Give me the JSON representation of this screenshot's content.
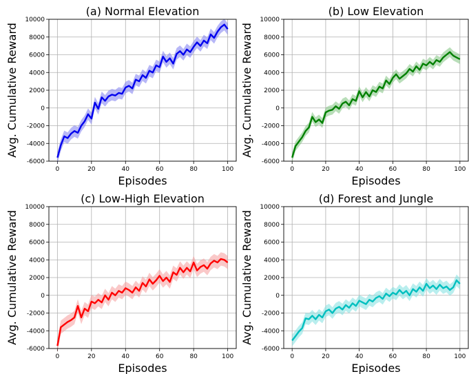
{
  "chart_data": [
    {
      "type": "line",
      "title": "(a) Normal Elevation",
      "xlabel": "Episodes",
      "ylabel": "Avg. Cumulative Reward",
      "xlim": [
        0,
        100
      ],
      "ylim": [
        -6000,
        10000
      ],
      "xticks": [
        "0",
        "20",
        "40",
        "60",
        "80",
        "100"
      ],
      "yticks": [
        "-6000",
        "-4000",
        "-2000",
        "0",
        "2000",
        "4000",
        "6000",
        "8000",
        "10000"
      ],
      "grid": true,
      "color": "#0000ee",
      "shade_color": "#7b7bf0",
      "band_half_width": 650,
      "series": [
        {
          "x": [
            0,
            2,
            4,
            6,
            8,
            10,
            12,
            14,
            16,
            18,
            20,
            22,
            24,
            26,
            28,
            30,
            32,
            34,
            36,
            38,
            40,
            42,
            44,
            46,
            48,
            50,
            52,
            54,
            56,
            58,
            60,
            62,
            64,
            66,
            68,
            70,
            72,
            74,
            76,
            78,
            80,
            82,
            84,
            86,
            88,
            90,
            92,
            94,
            96,
            98,
            100
          ],
          "y": [
            -5600,
            -4200,
            -3200,
            -3400,
            -2900,
            -2600,
            -2800,
            -2000,
            -1500,
            -700,
            -1200,
            600,
            -100,
            1200,
            800,
            1300,
            1500,
            1400,
            1700,
            1600,
            2300,
            2500,
            2200,
            3200,
            3000,
            3700,
            3400,
            4200,
            4000,
            4800,
            4600,
            5800,
            5200,
            5600,
            5000,
            6100,
            6400,
            6000,
            6600,
            6300,
            6900,
            7400,
            7000,
            7600,
            7300,
            8300,
            7900,
            8600,
            9100,
            9400,
            8900
          ]
        }
      ]
    },
    {
      "type": "line",
      "title": "(b) Low Elevation",
      "xlabel": "Episodes",
      "ylabel": "Avg. Cumulative Reward",
      "xlim": [
        0,
        100
      ],
      "ylim": [
        -6000,
        10000
      ],
      "xticks": [
        "0",
        "20",
        "40",
        "60",
        "80",
        "100"
      ],
      "yticks": [
        "-6000",
        "-4000",
        "-2000",
        "0",
        "2000",
        "4000",
        "6000",
        "8000",
        "10000"
      ],
      "grid": true,
      "color": "#008000",
      "shade_color": "#7fc27f",
      "band_half_width": 550,
      "series": [
        {
          "x": [
            0,
            2,
            4,
            6,
            8,
            10,
            12,
            14,
            16,
            18,
            20,
            22,
            24,
            26,
            28,
            30,
            32,
            34,
            36,
            38,
            40,
            42,
            44,
            46,
            48,
            50,
            52,
            54,
            56,
            58,
            60,
            62,
            64,
            66,
            68,
            70,
            72,
            74,
            76,
            78,
            80,
            82,
            84,
            86,
            88,
            90,
            92,
            94,
            96,
            98,
            100
          ],
          "y": [
            -5600,
            -4300,
            -3800,
            -3300,
            -2600,
            -2200,
            -1000,
            -1600,
            -1300,
            -1700,
            -500,
            -300,
            -200,
            200,
            -100,
            500,
            700,
            300,
            1000,
            800,
            1900,
            1200,
            1800,
            1300,
            2000,
            1800,
            2400,
            2200,
            3100,
            2700,
            3400,
            3800,
            3300,
            3600,
            3900,
            4400,
            4100,
            4700,
            4300,
            5000,
            4800,
            5200,
            4900,
            5400,
            5200,
            5700,
            6000,
            6300,
            5900,
            5700,
            5500
          ]
        }
      ]
    },
    {
      "type": "line",
      "title": "(c) Low-High Elevation",
      "xlabel": "Episodes",
      "ylabel": "Avg. Cumulative Reward",
      "xlim": [
        0,
        100
      ],
      "ylim": [
        -6000,
        10000
      ],
      "xticks": [
        "0",
        "20",
        "40",
        "60",
        "80",
        "100"
      ],
      "yticks": [
        "-6000",
        "-4000",
        "-2000",
        "0",
        "2000",
        "4000",
        "6000",
        "8000",
        "10000"
      ],
      "grid": true,
      "color": "#ff0000",
      "shade_color": "#f59a9a",
      "band_half_width": 750,
      "series": [
        {
          "x": [
            0,
            2,
            4,
            6,
            8,
            10,
            12,
            14,
            16,
            18,
            20,
            22,
            24,
            26,
            28,
            30,
            32,
            34,
            36,
            38,
            40,
            42,
            44,
            46,
            48,
            50,
            52,
            54,
            56,
            58,
            60,
            62,
            64,
            66,
            68,
            70,
            72,
            74,
            76,
            78,
            80,
            82,
            84,
            86,
            88,
            90,
            92,
            94,
            96,
            98,
            100
          ],
          "y": [
            -5700,
            -3600,
            -3300,
            -3000,
            -2800,
            -2500,
            -1200,
            -2500,
            -1500,
            -1800,
            -700,
            -900,
            -500,
            -800,
            0,
            -500,
            300,
            0,
            500,
            300,
            800,
            600,
            300,
            900,
            500,
            1400,
            1000,
            1800,
            1300,
            1700,
            2200,
            1600,
            2000,
            1500,
            2600,
            2300,
            3100,
            2600,
            3100,
            2700,
            3700,
            2800,
            3200,
            3400,
            3000,
            3600,
            3900,
            3700,
            4100,
            4000,
            3700
          ]
        }
      ]
    },
    {
      "type": "line",
      "title": "(d) Forest and Jungle",
      "xlabel": "Episodes",
      "ylabel": "Avg. Cumulative Reward",
      "xlim": [
        0,
        100
      ],
      "ylim": [
        -6000,
        10000
      ],
      "xticks": [
        "0",
        "20",
        "40",
        "60",
        "80",
        "100"
      ],
      "yticks": [
        "-6000",
        "-4000",
        "-2000",
        "0",
        "2000",
        "4000",
        "6000",
        "8000",
        "10000"
      ],
      "grid": true,
      "color": "#00bfbf",
      "shade_color": "#7fe0e0",
      "band_half_width": 650,
      "series": [
        {
          "x": [
            0,
            2,
            4,
            6,
            8,
            10,
            12,
            14,
            16,
            18,
            20,
            22,
            24,
            26,
            28,
            30,
            32,
            34,
            36,
            38,
            40,
            42,
            44,
            46,
            48,
            50,
            52,
            54,
            56,
            58,
            60,
            62,
            64,
            66,
            68,
            70,
            72,
            74,
            76,
            78,
            80,
            82,
            84,
            86,
            88,
            90,
            92,
            94,
            96,
            98,
            100
          ],
          "y": [
            -5100,
            -4600,
            -4100,
            -3700,
            -2600,
            -2700,
            -2300,
            -2700,
            -2200,
            -2500,
            -1800,
            -1600,
            -2000,
            -1500,
            -1300,
            -1600,
            -1100,
            -1400,
            -900,
            -1200,
            -600,
            -800,
            -1000,
            -500,
            -700,
            -300,
            -100,
            -400,
            200,
            -100,
            300,
            100,
            600,
            200,
            500,
            0,
            700,
            400,
            900,
            500,
            1300,
            800,
            1100,
            700,
            1200,
            800,
            1000,
            600,
            900,
            1700,
            1300
          ]
        }
      ]
    }
  ]
}
